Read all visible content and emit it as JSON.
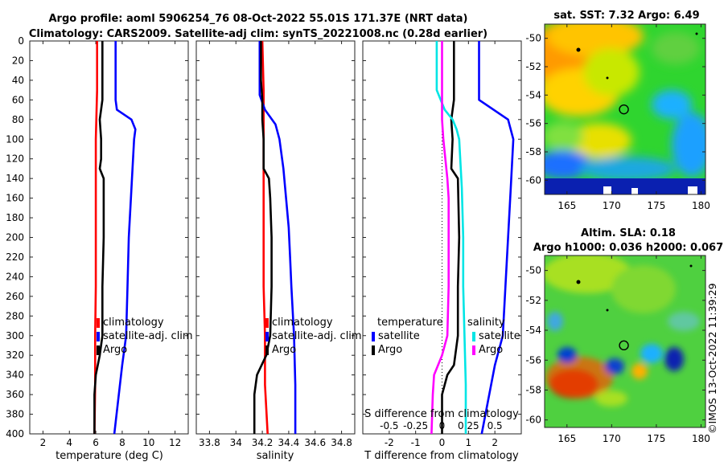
{
  "titles": {
    "line1": "Argo profile: aoml 5906254_76 08-Oct-2022 55.01S 171.37E (NRT data)",
    "line2": "Climatology: CARS2009. Satellite-adj clim: synTS_20221008.nc (0.28d earlier)"
  },
  "depth_axis": {
    "ticks": [
      "0",
      "20",
      "40",
      "60",
      "80",
      "100",
      "120",
      "140",
      "160",
      "180",
      "200",
      "220",
      "240",
      "260",
      "280",
      "300",
      "320",
      "340",
      "360",
      "380",
      "400"
    ]
  },
  "chart_data": [
    {
      "id": "temperature",
      "type": "line",
      "xlabel": "temperature (deg C)",
      "ylabel": "depth",
      "xlim": [
        1,
        13
      ],
      "ylim": [
        400,
        0
      ],
      "xticks": [
        2,
        4,
        6,
        8,
        10,
        12
      ],
      "xtick_labels": [
        "2",
        "4",
        "6",
        "8",
        "10",
        "12"
      ],
      "series": [
        {
          "name": "climatology",
          "color": "#ff0000",
          "depth": [
            0,
            50,
            100,
            150,
            200,
            250,
            300,
            350,
            400
          ],
          "values": [
            6.1,
            6.1,
            6.0,
            6.0,
            6.0,
            6.0,
            5.95,
            5.95,
            5.9
          ]
        },
        {
          "name": "satellite-adj. clim",
          "color": "#0000ff",
          "depth": [
            0,
            60,
            70,
            80,
            90,
            100,
            150,
            200,
            250,
            300,
            330,
            400
          ],
          "values": [
            7.5,
            7.5,
            7.6,
            8.7,
            9.0,
            8.9,
            8.7,
            8.5,
            8.4,
            8.3,
            8.0,
            7.4
          ]
        },
        {
          "name": "Argo",
          "color": "#000000",
          "depth": [
            0,
            60,
            80,
            100,
            120,
            130,
            140,
            200,
            250,
            300,
            320,
            340,
            360,
            400
          ],
          "values": [
            6.5,
            6.5,
            6.3,
            6.4,
            6.4,
            6.3,
            6.6,
            6.6,
            6.5,
            6.5,
            6.3,
            6.0,
            5.9,
            5.9
          ]
        }
      ],
      "legend": [
        "climatology",
        "satellite-adj. clim",
        "Argo"
      ]
    },
    {
      "id": "salinity",
      "type": "line",
      "xlabel": "salinity",
      "ylabel": "depth",
      "xlim": [
        33.7,
        34.9
      ],
      "ylim": [
        400,
        0
      ],
      "xticks": [
        33.8,
        34.0,
        34.2,
        34.4,
        34.6,
        34.8
      ],
      "xtick_labels": [
        "33.8",
        "34",
        "34.2",
        "34.4",
        "34.6",
        "34.8"
      ],
      "series": [
        {
          "name": "climatology",
          "color": "#ff0000",
          "depth": [
            0,
            50,
            100,
            150,
            200,
            250,
            300,
            350,
            400
          ],
          "values": [
            34.2,
            34.21,
            34.21,
            34.21,
            34.21,
            34.21,
            34.22,
            34.22,
            34.24
          ]
        },
        {
          "name": "satellite-adj. clim",
          "color": "#0000ff",
          "depth": [
            0,
            55,
            70,
            85,
            100,
            130,
            160,
            190,
            220,
            250,
            300,
            350,
            400
          ],
          "values": [
            34.18,
            34.18,
            34.22,
            34.3,
            34.33,
            34.36,
            34.38,
            34.4,
            34.41,
            34.42,
            34.44,
            34.45,
            34.45
          ]
        },
        {
          "name": "Argo",
          "color": "#000000",
          "depth": [
            0,
            40,
            60,
            80,
            100,
            130,
            140,
            160,
            200,
            250,
            300,
            320,
            340,
            360,
            400
          ],
          "values": [
            34.19,
            34.19,
            34.2,
            34.2,
            34.21,
            34.21,
            34.25,
            34.26,
            34.27,
            34.27,
            34.26,
            34.23,
            34.16,
            34.14,
            34.14
          ]
        }
      ],
      "legend": [
        "climatology",
        "satellite-adj. clim",
        "Argo"
      ]
    },
    {
      "id": "differences",
      "type": "line",
      "xlabel": "T difference from climatology",
      "x2label": "S difference from climatology",
      "ylabel": "depth",
      "xlim": [
        -3,
        3
      ],
      "ylim": [
        400,
        0
      ],
      "xticks": [
        -2,
        -1,
        0,
        1,
        2
      ],
      "xtick_labels": [
        "-2",
        "-1",
        "0",
        "1",
        "2"
      ],
      "x2ticks": [
        -2,
        -1,
        0,
        1,
        2
      ],
      "x2tick_labels": [
        "-0.5",
        "-0.25",
        "0",
        "0.25",
        "0.5"
      ],
      "zero_line": 0,
      "series": [
        {
          "name": "T satellite",
          "color": "#0000ff",
          "depth": [
            0,
            60,
            80,
            100,
            150,
            200,
            250,
            300,
            330,
            400
          ],
          "values": [
            1.4,
            1.4,
            2.5,
            2.7,
            2.6,
            2.5,
            2.4,
            2.3,
            2.0,
            1.5
          ]
        },
        {
          "name": "T Argo",
          "color": "#000000",
          "depth": [
            0,
            60,
            80,
            100,
            130,
            140,
            200,
            250,
            300,
            330,
            340,
            360,
            400
          ],
          "values": [
            0.45,
            0.45,
            0.35,
            0.4,
            0.35,
            0.6,
            0.65,
            0.6,
            0.6,
            0.45,
            0.2,
            0.0,
            0.0
          ]
        },
        {
          "name": "S satellite",
          "color": "#00e5e5",
          "depth": [
            0,
            50,
            70,
            80,
            90,
            100,
            150,
            200,
            250,
            300,
            350,
            400
          ],
          "values": [
            -0.2,
            -0.2,
            0.1,
            0.4,
            0.55,
            0.65,
            0.75,
            0.8,
            0.8,
            0.85,
            0.9,
            0.9
          ]
        },
        {
          "name": "S Argo",
          "color": "#ff00ff",
          "depth": [
            0,
            60,
            80,
            100,
            140,
            160,
            200,
            250,
            300,
            320,
            340,
            360,
            400
          ],
          "values": [
            0.0,
            0.0,
            0.0,
            0.05,
            0.2,
            0.25,
            0.25,
            0.25,
            0.2,
            0.0,
            -0.3,
            -0.35,
            -0.4
          ]
        }
      ],
      "legend_headers": [
        "temperature",
        "salinity"
      ],
      "legend_left": [
        "satellite",
        "Argo"
      ],
      "legend_right": [
        "satellite",
        "Argo"
      ]
    },
    {
      "id": "sat_sst_map",
      "type": "heatmap",
      "title": "sat. SST: 7.32 Argo: 6.49",
      "xlim": [
        162.5,
        180.5
      ],
      "ylim": [
        -61,
        -49
      ],
      "xticks": [
        165,
        170,
        175,
        180
      ],
      "xtick_labels": [
        "165",
        "170",
        "175",
        "180"
      ],
      "yticks": [
        -50,
        -52,
        -54,
        -56,
        -58,
        -60
      ],
      "ytick_labels": [
        "-50",
        "-52",
        "-54",
        "-56",
        "-58",
        "-60"
      ],
      "marker": {
        "lon": 171.37,
        "lat": -55.01
      }
    },
    {
      "id": "sla_map",
      "type": "heatmap",
      "title": "Altim. SLA: 0.18",
      "subtitle": "Argo h1000: 0.036 h2000: 0.067",
      "xlim": [
        162.5,
        180.5
      ],
      "ylim": [
        -60.5,
        -49
      ],
      "xticks": [
        165,
        170,
        175,
        180
      ],
      "xtick_labels": [
        "165",
        "170",
        "175",
        "180"
      ],
      "yticks": [
        -50,
        -52,
        -54,
        -56,
        -58,
        -60
      ],
      "ytick_labels": [
        "-50",
        "-52",
        "-54",
        "-56",
        "-58",
        "-60"
      ],
      "marker": {
        "lon": 171.37,
        "lat": -55.01
      }
    }
  ],
  "watermark": "©IMOS 13-Oct-2022 11:39:29"
}
